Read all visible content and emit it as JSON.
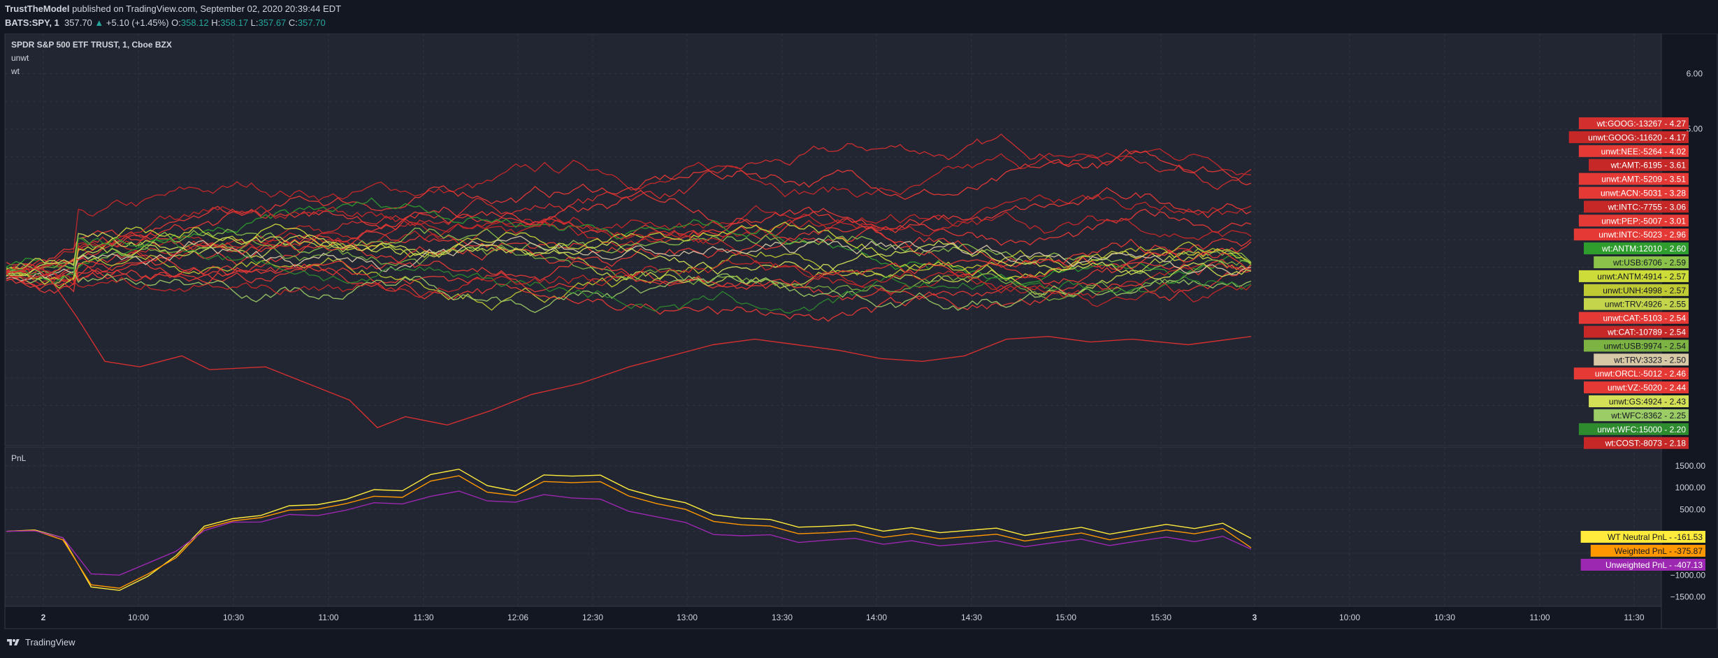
{
  "header": {
    "author": "TrustTheModel",
    "published": " published on TradingView.com, September 02, 2020 20:39:44 EDT",
    "symbol": "BATS:SPY, 1",
    "last": "357.70",
    "change": "+5.10 (+1.45%)",
    "o_label": "O:",
    "o": "358.12",
    "h_label": "H:",
    "h": "358.17",
    "l_label": "L:",
    "l": "357.67",
    "c_label": "C:",
    "c": "357.70"
  },
  "footer": {
    "brand": "TradingView"
  },
  "colors": {
    "bg": "#131722",
    "pane": "#222632",
    "grid": "#2e3340",
    "text": "#d1d4dc",
    "red": "#d32f2f",
    "green": "#43a047",
    "lime": "#8bc34a",
    "yellow": "#cddc39",
    "tan": "#d7c9a6",
    "pnl_wt_neutral": "#ffeb3b",
    "pnl_weighted": "#ff9800",
    "pnl_unweighted": "#9c27b0"
  },
  "chart_data": [
    {
      "type": "line",
      "title": "SPDR S&P 500 ETF TRUST, 1, Cboe BZX",
      "legend": [
        "unwt",
        "wt"
      ],
      "y_ticks": [
        "6.00",
        "5.00"
      ],
      "ylim": [
        -0.8,
        6.6
      ],
      "x_ticks": [
        "2",
        "10:00",
        "10:30",
        "11:00",
        "11:30",
        "12:06",
        "12:30",
        "13:00",
        "13:30",
        "14:00",
        "14:30",
        "15:00",
        "15:30",
        "3",
        "10:00",
        "10:30",
        "11:00",
        "11:30"
      ],
      "series": [
        {
          "name": "wt:GOOG:-13267",
          "last": "4.27",
          "color": "#d32f2f"
        },
        {
          "name": "unwt:GOOG:-11620",
          "last": "4.17",
          "color": "#c62828"
        },
        {
          "name": "unwt:NEE:-5264",
          "last": "4.02",
          "color": "#e53935"
        },
        {
          "name": "wt:AMT:-6195",
          "last": "3.61",
          "color": "#c62828"
        },
        {
          "name": "unwt:AMT:-5209",
          "last": "3.51",
          "color": "#e53935"
        },
        {
          "name": "unwt:ACN:-5031",
          "last": "3.28",
          "color": "#e53935"
        },
        {
          "name": "wt:INTC:-7755",
          "last": "3.06",
          "color": "#c62828"
        },
        {
          "name": "unwt:PEP:-5007",
          "last": "3.01",
          "color": "#e53935"
        },
        {
          "name": "unwt:INTC:-5023",
          "last": "2.96",
          "color": "#e53935"
        },
        {
          "name": "wt:ANTM:12010",
          "last": "2.60",
          "color": "#2e9d2e"
        },
        {
          "name": "wt:USB:6706",
          "last": "2.59",
          "color": "#8bc34a"
        },
        {
          "name": "unwt:ANTM:4914",
          "last": "2.57",
          "color": "#cddc39"
        },
        {
          "name": "unwt:UNH:4998",
          "last": "2.57",
          "color": "#c0ca33"
        },
        {
          "name": "unwt:TRV:4926",
          "last": "2.55",
          "color": "#c5d54b"
        },
        {
          "name": "unwt:CAT:-5103",
          "last": "2.54",
          "color": "#e53935"
        },
        {
          "name": "wt:CAT:-10789",
          "last": "2.54",
          "color": "#c62828"
        },
        {
          "name": "unwt:USB:9974",
          "last": "2.54",
          "color": "#7cb342"
        },
        {
          "name": "wt:TRV:3323",
          "last": "2.50",
          "color": "#d7c9a6"
        },
        {
          "name": "unwt:ORCL:-5012",
          "last": "2.46",
          "color": "#e53935"
        },
        {
          "name": "unwt:VZ:-5020",
          "last": "2.44",
          "color": "#e53935"
        },
        {
          "name": "unwt:GS:4924",
          "last": "2.43",
          "color": "#d4e157"
        },
        {
          "name": "wt:WFC:8362",
          "last": "2.25",
          "color": "#9ccc65"
        },
        {
          "name": "unwt:WFC:15000",
          "last": "2.20",
          "color": "#2e8b2e"
        },
        {
          "name": "wt:COST:-8073",
          "last": "2.18",
          "color": "#c62828"
        }
      ]
    },
    {
      "type": "line",
      "title": "PnL",
      "y_ticks": [
        "1500.00",
        "1000.00",
        "500.00",
        "-1000.00",
        "-1500.00"
      ],
      "ylim": [
        -1650,
        1800
      ],
      "series": [
        {
          "name": "WT Neutral PnL",
          "last": "-161.53",
          "color": "#ffeb3b",
          "values": [
            0,
            50,
            -200,
            -1200,
            -1350,
            -1100,
            -500,
            100,
            200,
            400,
            550,
            700,
            750,
            900,
            1000,
            1300,
            1350,
            1100,
            900,
            1200,
            1300,
            1250,
            1050,
            800,
            600,
            450,
            300,
            200,
            150,
            100,
            60,
            40,
            50,
            60,
            40,
            20,
            -20,
            0,
            20,
            -10,
            30,
            70,
            100,
            150,
            -161.53
          ]
        },
        {
          "name": "Weighted PnL",
          "last": "-375.87",
          "color": "#ff9800",
          "values": [
            0,
            40,
            -250,
            -1150,
            -1300,
            -1050,
            -550,
            50,
            150,
            350,
            450,
            600,
            650,
            750,
            850,
            1150,
            1200,
            950,
            800,
            1050,
            1150,
            1100,
            900,
            650,
            450,
            300,
            150,
            50,
            0,
            -50,
            -80,
            -100,
            -90,
            -80,
            -100,
            -120,
            -150,
            -130,
            -110,
            -140,
            -100,
            -60,
            -20,
            30,
            -375.87
          ]
        },
        {
          "name": "Unweighted PnL",
          "last": "-407.13",
          "color": "#9c27b0",
          "values": [
            0,
            30,
            -200,
            -900,
            -1000,
            -800,
            -400,
            0,
            120,
            250,
            350,
            450,
            500,
            600,
            700,
            800,
            850,
            750,
            650,
            750,
            800,
            700,
            550,
            350,
            150,
            0,
            -100,
            -150,
            -200,
            -220,
            -250,
            -260,
            -250,
            -240,
            -260,
            -270,
            -280,
            -260,
            -250,
            -270,
            -240,
            -220,
            -200,
            -150,
            -407.13
          ]
        }
      ]
    }
  ]
}
